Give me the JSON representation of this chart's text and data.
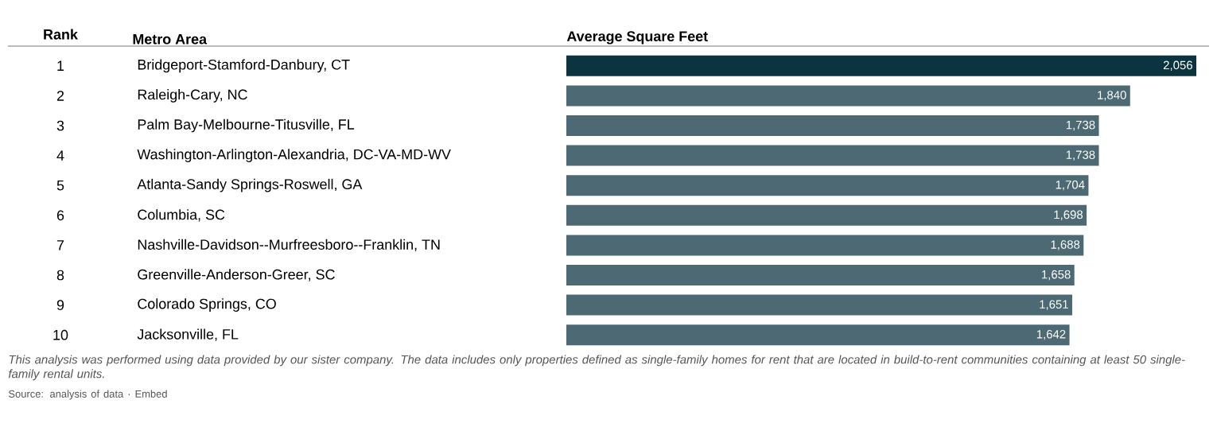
{
  "chart_data": {
    "type": "bar",
    "orientation": "horizontal",
    "xlabel": "Average Square Feet",
    "ylabel": "Metro Area",
    "categories": [
      "Bridgeport-Stamford-Danbury, CT",
      "Raleigh-Cary, NC",
      "Palm Bay-Melbourne-Titusville, FL",
      "Washington-Arlington-Alexandria, DC-VA-MD-WV",
      "Atlanta-Sandy Springs-Roswell, GA",
      "Columbia, SC",
      "Nashville-Davidson--Murfreesboro--Franklin, TN",
      "Greenville-Anderson-Greer, SC",
      "Colorado Springs, CO",
      "Jacksonville, FL"
    ],
    "values": [
      2056,
      1840,
      1738,
      1738,
      1704,
      1698,
      1688,
      1658,
      1651,
      1642
    ],
    "value_labels": [
      "2,056",
      "1,840",
      "1,738",
      "1,738",
      "1,704",
      "1,698",
      "1,688",
      "1,658",
      "1,651",
      "1,642"
    ],
    "colors": [
      "#0b3340",
      "#4d6a74",
      "#4d6a74",
      "#4d6a74",
      "#4d6a74",
      "#4d6a74",
      "#4d6a74",
      "#4d6a74",
      "#4d6a74",
      "#4d6a74"
    ],
    "xlim": [
      0,
      2056
    ],
    "annotations": [
      "Rank",
      "1",
      "2",
      "3",
      "4",
      "5",
      "6",
      "7",
      "8",
      "9",
      "10",
      "This analysis was performed using data provided by our sister company. The data includes only properties defined as single-family homes for rent that are located in build-to-rent communities containing at least 50 single-family rental units.",
      "Source: analysis of data · Embed"
    ]
  }
}
